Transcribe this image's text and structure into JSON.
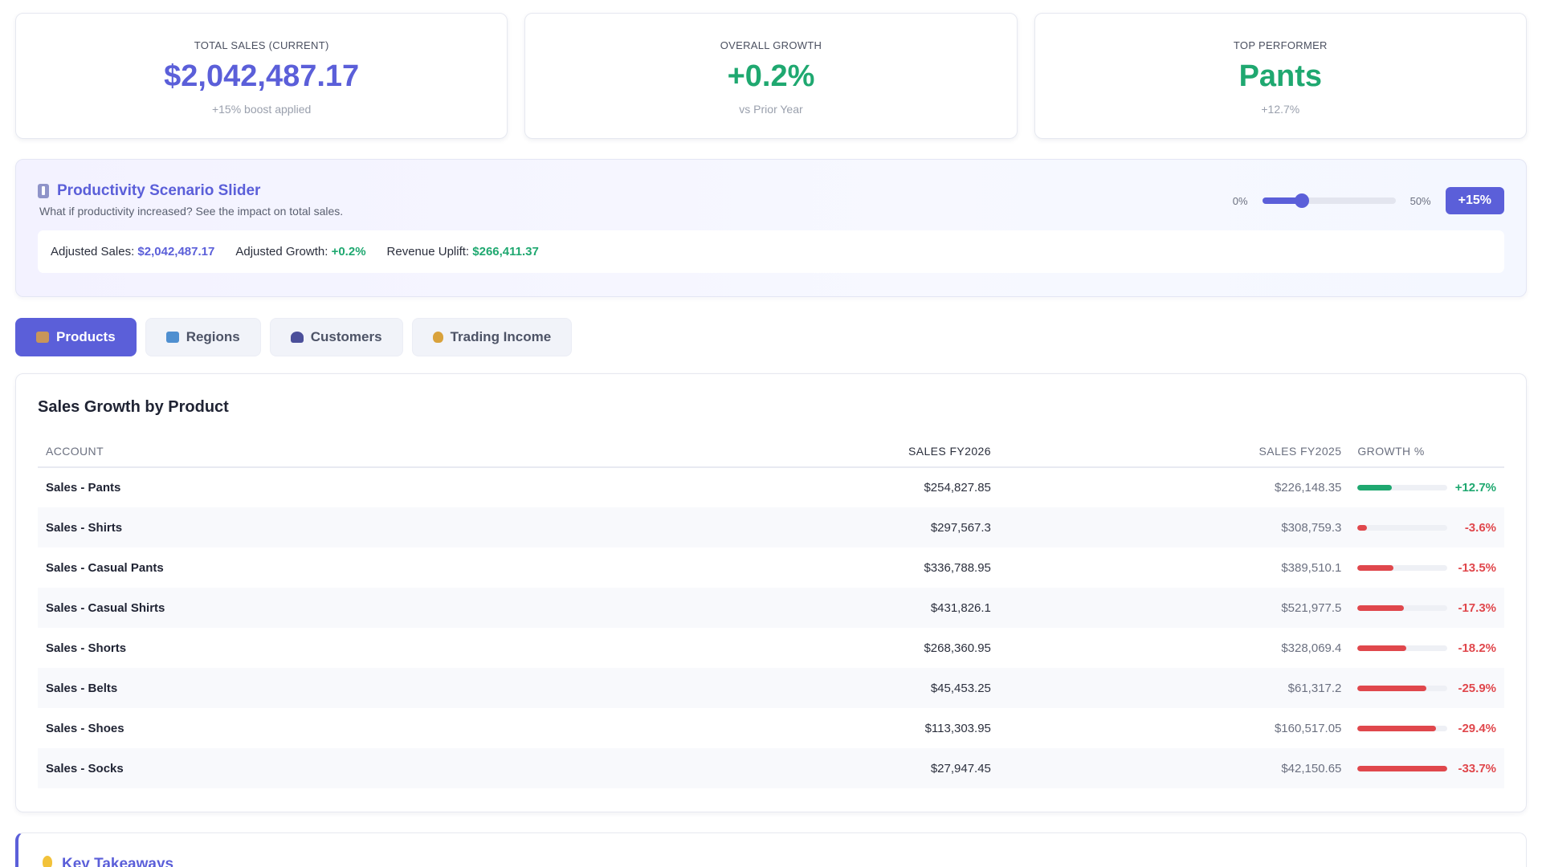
{
  "kpis": [
    {
      "label": "TOTAL SALES (CURRENT)",
      "value": "$2,042,487.17",
      "sub": "+15% boost applied",
      "color": "#5b5fd9"
    },
    {
      "label": "OVERALL GROWTH",
      "value": "+0.2%",
      "sub": "vs Prior Year",
      "color": "#1fa870"
    },
    {
      "label": "TOP PERFORMER",
      "value": "Pants",
      "sub": "+12.7%",
      "color": "#1fa870"
    }
  ],
  "scenario": {
    "title": "Productivity Scenario Slider",
    "icon": "slider-icon",
    "description": "What if productivity increased? See the impact on total sales.",
    "min_label": "0%",
    "max_label": "50%",
    "slider_fraction": 0.3,
    "button_label": "+15%",
    "adjusted_sales_label": "Adjusted Sales:",
    "adjusted_sales_value": "$2,042,487.17",
    "adjusted_growth_label": "Adjusted Growth:",
    "adjusted_growth_value": "+0.2%",
    "uplift_label": "Revenue Uplift:",
    "uplift_value": "$266,411.37"
  },
  "tabs": [
    {
      "label": "Products",
      "icon": "box-icon",
      "active": true
    },
    {
      "label": "Regions",
      "icon": "map-icon",
      "active": false
    },
    {
      "label": "Customers",
      "icon": "people-icon",
      "active": false
    },
    {
      "label": "Trading Income",
      "icon": "money-bag-icon",
      "active": false
    }
  ],
  "table": {
    "title": "Sales Growth by Product",
    "headers": {
      "account": "ACCOUNT",
      "fy2026": "SALES FY2026",
      "fy2025": "SALES FY2025",
      "growth": "GROWTH %"
    },
    "rows": [
      {
        "account": "Sales - Pants",
        "fy2026": "$254,827.85",
        "fy2025": "$226,148.35",
        "growth": "+12.7%",
        "growth_value": 12.7
      },
      {
        "account": "Sales - Shirts",
        "fy2026": "$297,567.3",
        "fy2025": "$308,759.3",
        "growth": "-3.6%",
        "growth_value": -3.6
      },
      {
        "account": "Sales - Casual Pants",
        "fy2026": "$336,788.95",
        "fy2025": "$389,510.1",
        "growth": "-13.5%",
        "growth_value": -13.5
      },
      {
        "account": "Sales - Casual Shirts",
        "fy2026": "$431,826.1",
        "fy2025": "$521,977.5",
        "growth": "-17.3%",
        "growth_value": -17.3
      },
      {
        "account": "Sales - Shorts",
        "fy2026": "$268,360.95",
        "fy2025": "$328,069.4",
        "growth": "-18.2%",
        "growth_value": -18.2
      },
      {
        "account": "Sales - Belts",
        "fy2026": "$45,453.25",
        "fy2025": "$61,317.2",
        "growth": "-25.9%",
        "growth_value": -25.9
      },
      {
        "account": "Sales - Shoes",
        "fy2026": "$113,303.95",
        "fy2025": "$160,517.05",
        "growth": "-29.4%",
        "growth_value": -29.4
      },
      {
        "account": "Sales - Socks",
        "fy2026": "$27,947.45",
        "fy2025": "$42,150.65",
        "growth": "-33.7%",
        "growth_value": -33.7
      }
    ],
    "positive_color": "#1fa870",
    "negative_color": "#e0474c"
  },
  "takeaways": {
    "title": "Key Takeaways",
    "icon": "lightbulb-icon"
  }
}
